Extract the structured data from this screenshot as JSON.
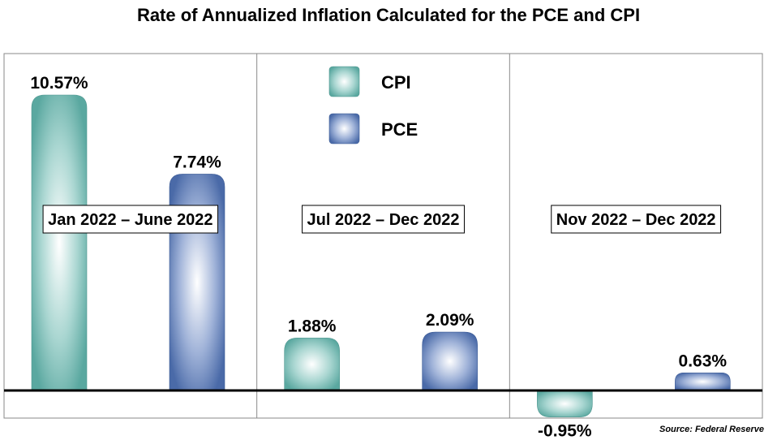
{
  "chart_data": {
    "type": "bar",
    "title": "Rate of Annualized Inflation Calculated for the PCE and CPI",
    "categories": [
      "Jan 2022 – June 2022",
      "Jul 2022 – Dec 2022",
      "Nov 2022 – Dec 2022"
    ],
    "series": [
      {
        "name": "CPI",
        "values": [
          10.57,
          1.88,
          -0.95
        ],
        "labels": [
          "10.57%",
          "1.88%",
          "-0.95%"
        ],
        "color": "#5aa8a0"
      },
      {
        "name": "PCE",
        "values": [
          7.74,
          2.09,
          0.63
        ],
        "labels": [
          "7.74%",
          "2.09%",
          "0.63%"
        ],
        "color": "#4a6aa8"
      }
    ],
    "ylim": [
      -1.3,
      16
    ],
    "grid": false,
    "legend": "top-center",
    "source": "Source: Federal Reserve"
  }
}
